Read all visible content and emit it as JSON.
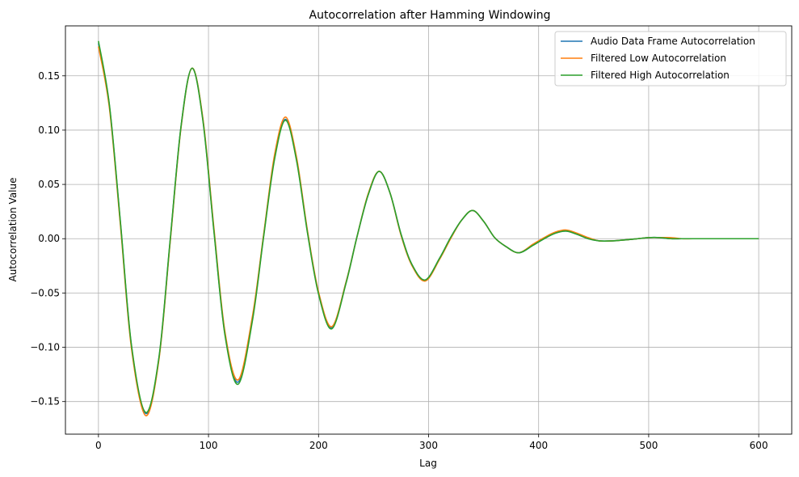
{
  "chart_data": {
    "type": "line",
    "title": "Autocorrelation after Hamming Windowing",
    "xlabel": "Lag",
    "ylabel": "Autocorrelation Value",
    "xlim": [
      -30,
      630
    ],
    "ylim": [
      -0.18,
      0.196
    ],
    "xticks": [
      0,
      100,
      200,
      300,
      400,
      500,
      600
    ],
    "xtick_labels": [
      "0",
      "100",
      "200",
      "300",
      "400",
      "500",
      "600"
    ],
    "yticks": [
      -0.15,
      -0.1,
      -0.05,
      0.0,
      0.05,
      0.1,
      0.15
    ],
    "ytick_labels": [
      "−0.15",
      "−0.10",
      "−0.05",
      "0.00",
      "0.05",
      "0.10",
      "0.15"
    ],
    "grid": true,
    "legend_position": "top-right",
    "x": [
      0,
      10,
      20,
      30,
      43,
      55,
      65,
      75,
      85,
      95,
      105,
      115,
      127,
      140,
      150,
      160,
      170,
      180,
      190,
      200,
      212,
      225,
      235,
      245,
      255,
      265,
      275,
      285,
      297,
      310,
      320,
      330,
      340,
      350,
      360,
      370,
      382,
      395,
      405,
      415,
      425,
      435,
      445,
      455,
      467,
      480,
      490,
      500,
      510,
      520,
      530,
      540,
      552,
      565,
      575,
      585,
      600
    ],
    "series": [
      {
        "name": "Audio Data Frame Autocorrelation",
        "color": "#1f77b4",
        "values": [
          0.18,
          0.122,
          0.014,
          -0.099,
          -0.161,
          -0.11,
          -0.004,
          0.103,
          0.157,
          0.109,
          0.007,
          -0.088,
          -0.132,
          -0.073,
          0.002,
          0.075,
          0.11,
          0.073,
          0.006,
          -0.05,
          -0.082,
          -0.04,
          0.002,
          0.04,
          0.062,
          0.042,
          0.004,
          -0.024,
          -0.038,
          -0.018,
          0.001,
          0.017,
          0.026,
          0.016,
          0.001,
          -0.007,
          -0.013,
          -0.006,
          0.0,
          0.005,
          0.007,
          0.004,
          0.0,
          -0.002,
          -0.002,
          -0.001,
          0.0,
          0.001,
          0.001,
          0.0,
          0.0,
          0.0,
          0.0,
          0.0,
          0.0,
          0.0,
          0.0
        ]
      },
      {
        "name": "Filtered Low Autocorrelation",
        "color": "#ff7f0e",
        "values": [
          0.177,
          0.12,
          0.012,
          -0.101,
          -0.163,
          -0.111,
          -0.005,
          0.102,
          0.157,
          0.11,
          0.009,
          -0.086,
          -0.13,
          -0.071,
          0.003,
          0.077,
          0.112,
          0.075,
          0.007,
          -0.049,
          -0.081,
          -0.04,
          0.002,
          0.041,
          0.062,
          0.042,
          0.003,
          -0.025,
          -0.039,
          -0.019,
          0.0,
          0.017,
          0.026,
          0.016,
          0.001,
          -0.007,
          -0.013,
          -0.005,
          0.001,
          0.006,
          0.008,
          0.005,
          0.001,
          -0.002,
          -0.002,
          -0.001,
          0.0,
          0.001,
          0.001,
          0.001,
          0.0,
          0.0,
          0.0,
          0.0,
          0.0,
          0.0,
          0.0
        ]
      },
      {
        "name": "Filtered High Autocorrelation",
        "color": "#2ca02c",
        "values": [
          0.182,
          0.123,
          0.015,
          -0.098,
          -0.16,
          -0.109,
          -0.003,
          0.103,
          0.157,
          0.108,
          0.006,
          -0.089,
          -0.134,
          -0.075,
          0.001,
          0.073,
          0.109,
          0.072,
          0.005,
          -0.051,
          -0.083,
          -0.041,
          0.002,
          0.04,
          0.062,
          0.042,
          0.004,
          -0.024,
          -0.038,
          -0.018,
          0.001,
          0.017,
          0.026,
          0.016,
          0.001,
          -0.007,
          -0.013,
          -0.006,
          0.0,
          0.005,
          0.007,
          0.004,
          0.0,
          -0.002,
          -0.002,
          -0.001,
          0.0,
          0.001,
          0.001,
          0.0,
          0.0,
          0.0,
          0.0,
          0.0,
          0.0,
          0.0,
          0.0
        ]
      }
    ]
  }
}
